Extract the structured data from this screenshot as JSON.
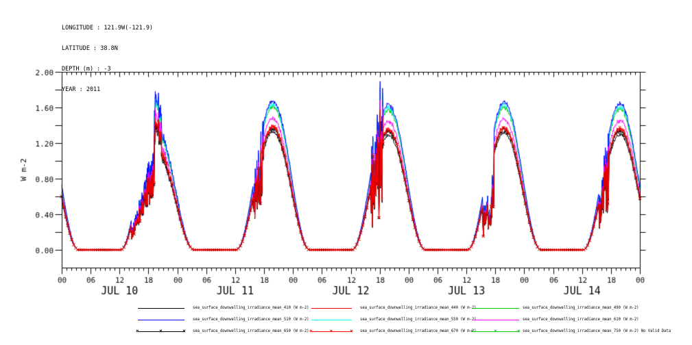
{
  "header": {
    "longitude": "LONGITUDE : 121.9W(-121.9)",
    "latitude": "LATITUDE : 38.8N",
    "depth": "DEPTH (m) : -3",
    "year": "YEAR : 2011"
  },
  "chart_data": {
    "type": "line",
    "title": "",
    "ylabel": "W m-2",
    "ylim": [
      -0.2,
      2.0
    ],
    "ytick_step": 0.2,
    "ytick_label_step": 0.4,
    "ytick_labels": [
      "0.00",
      "0.40",
      "0.80",
      "1.20",
      "1.60",
      "2.00"
    ],
    "x_total_hours": 120,
    "x_major_step_hours": 6,
    "x_hour_labels": [
      "00",
      "06",
      "12",
      "18"
    ],
    "day_labels": [
      "JUL 10",
      "JUL 11",
      "JUL 12",
      "JUL 13",
      "JUL 14"
    ],
    "grid": false,
    "legend_position": "bottom",
    "night_plateau_value": 0.0,
    "jul12_spike_max_w_m2": 1.88,
    "no_data_note": "No Valid Data",
    "diurnal_model": {
      "sunrise_hour_utc": 12.2,
      "solar_noon_hour_utc": 19.85,
      "sunset_hour_utc": 27.5,
      "shape_power": 2
    },
    "days": [
      {
        "label": "JUL 10",
        "clear_sky_peak": 1.68,
        "cloud_events": [
          {
            "start": 14.5,
            "end": 19.25,
            "factor": 0.55,
            "flicker": 0.13
          },
          {
            "start": 19.25,
            "end": 20.7,
            "factor": 0.97,
            "flicker": 0.1
          },
          {
            "start": 20.7,
            "end": 27.5,
            "factor": 0.8,
            "flicker": 0.03
          }
        ]
      },
      {
        "label": "JUL 11",
        "clear_sky_peak": 1.67,
        "cloud_events": [
          {
            "start": 15.7,
            "end": 17.9,
            "factor": 0.8,
            "flicker": 0.3
          }
        ]
      },
      {
        "label": "JUL 12",
        "clear_sky_peak": 1.63,
        "cloud_events": [
          {
            "start": 16.2,
            "end": 18.7,
            "factor": 0.75,
            "flicker": 0.5,
            "upspike": 1.3
          }
        ]
      },
      {
        "label": "JUL 13",
        "clear_sky_peak": 1.66,
        "cloud_events": [
          {
            "start": 15.4,
            "end": 17.7,
            "factor": 0.48,
            "flicker": 0.22
          }
        ]
      },
      {
        "label": "JUL 14",
        "clear_sky_peak": 1.64,
        "cloud_events": [
          {
            "start": 15.5,
            "end": 17.5,
            "factor": 0.78,
            "flicker": 0.38
          }
        ]
      }
    ],
    "series": [
      {
        "name": "sea_surface_downwelling_irradiance_mean_410",
        "units": "W m-2",
        "color": "#000000",
        "marker": "none",
        "scale": 0.79,
        "daily_dome_peaks": [
          1.33,
          1.32,
          1.29,
          1.31,
          1.3
        ]
      },
      {
        "name": "sea_surface_downwelling_irradiance_mean_440",
        "units": "W m-2",
        "color": "#ff0000",
        "marker": "none",
        "scale": 0.83,
        "daily_dome_peaks": [
          1.39,
          1.39,
          1.35,
          1.38,
          1.36
        ]
      },
      {
        "name": "sea_surface_downwelling_irradiance_mean_490",
        "units": "W m-2",
        "color": "#00cc00",
        "marker": "none",
        "scale": 0.965,
        "daily_dome_peaks": [
          1.62,
          1.61,
          1.57,
          1.6,
          1.58
        ]
      },
      {
        "name": "sea_surface_downwelling_irradiance_mean_510",
        "units": "W m-2",
        "color": "#0000ff",
        "marker": "none",
        "scale": 1.0,
        "daily_dome_peaks": [
          1.68,
          1.67,
          1.63,
          1.66,
          1.64
        ]
      },
      {
        "name": "sea_surface_downwelling_irradiance_mean_550",
        "units": "W m-2",
        "color": "#00ffff",
        "marker": "none",
        "scale": 0.98,
        "daily_dome_peaks": [
          1.65,
          1.64,
          1.6,
          1.63,
          1.61
        ]
      },
      {
        "name": "sea_surface_downwelling_irradiance_mean_610",
        "units": "W m-2",
        "color": "#ff00ff",
        "marker": "none",
        "scale": 0.885,
        "daily_dome_peaks": [
          1.49,
          1.48,
          1.44,
          1.47,
          1.45
        ]
      },
      {
        "name": "sea_surface_downwelling_irradiance_mean_650",
        "units": "W m-2",
        "color": "#000000",
        "marker": "x",
        "scale": 0.815,
        "daily_dome_peaks": [
          1.37,
          1.36,
          1.33,
          1.35,
          1.34
        ]
      },
      {
        "name": "sea_surface_downwelling_irradiance_mean_670",
        "units": "W m-2",
        "color": "#ff0000",
        "marker": "x",
        "scale": 0.825,
        "daily_dome_peaks": [
          1.39,
          1.38,
          1.34,
          1.37,
          1.35
        ]
      },
      {
        "name": "sea_surface_downwelling_irradiance_mean_750",
        "units": "W m-2",
        "color": "#00cc00",
        "marker": "x",
        "scale": 0,
        "no_data": true,
        "daily_dome_peaks": null
      }
    ]
  }
}
